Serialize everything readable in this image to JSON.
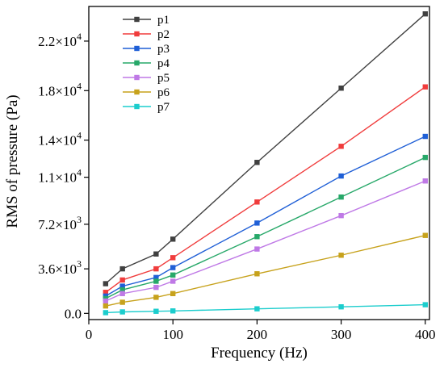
{
  "chart_data": {
    "type": "line",
    "xlabel": "Frequency (Hz)",
    "ylabel": "RMS of pressure (Pa)",
    "xlim": [
      0,
      405
    ],
    "ylim": [
      -500,
      24800
    ],
    "x_ticks": [
      0,
      100,
      200,
      300,
      400
    ],
    "x_tick_labels": [
      "0",
      "100",
      "200",
      "300",
      "400"
    ],
    "y_ticks": [
      0,
      3600,
      7200,
      11000,
      14000,
      18000,
      22000
    ],
    "y_tick_labels": [
      {
        "mantissa": "0.0",
        "exponent": ""
      },
      {
        "mantissa": "3.6",
        "exponent": "3"
      },
      {
        "mantissa": "7.2",
        "exponent": "3"
      },
      {
        "mantissa": "1.1",
        "exponent": "4"
      },
      {
        "mantissa": "1.4",
        "exponent": "4"
      },
      {
        "mantissa": "1.8",
        "exponent": "4"
      },
      {
        "mantissa": "2.2",
        "exponent": "4"
      }
    ],
    "times_sign": "×10",
    "grid": false,
    "legend_position": "top-left",
    "x": [
      20,
      40,
      80,
      100,
      200,
      300,
      400
    ],
    "series": [
      {
        "name": "p1",
        "color": "#404040",
        "values": [
          2400,
          3600,
          4800,
          6000,
          12200,
          18200,
          24200
        ]
      },
      {
        "name": "p2",
        "color": "#f03c3c",
        "values": [
          1700,
          2700,
          3600,
          4500,
          9000,
          13500,
          18300
        ]
      },
      {
        "name": "p3",
        "color": "#1f5fd6",
        "values": [
          1400,
          2200,
          2900,
          3700,
          7300,
          11100,
          14300
        ]
      },
      {
        "name": "p4",
        "color": "#27a869",
        "values": [
          1200,
          1900,
          2600,
          3100,
          6200,
          9400,
          12600
        ]
      },
      {
        "name": "p5",
        "color": "#bf79e6",
        "values": [
          1000,
          1600,
          2100,
          2600,
          5200,
          7900,
          10700
        ]
      },
      {
        "name": "p6",
        "color": "#c7a21c",
        "values": [
          600,
          900,
          1300,
          1600,
          3200,
          4700,
          6300
        ]
      },
      {
        "name": "p7",
        "color": "#1ccdcd",
        "values": [
          60,
          120,
          170,
          200,
          370,
          530,
          700
        ]
      }
    ]
  }
}
